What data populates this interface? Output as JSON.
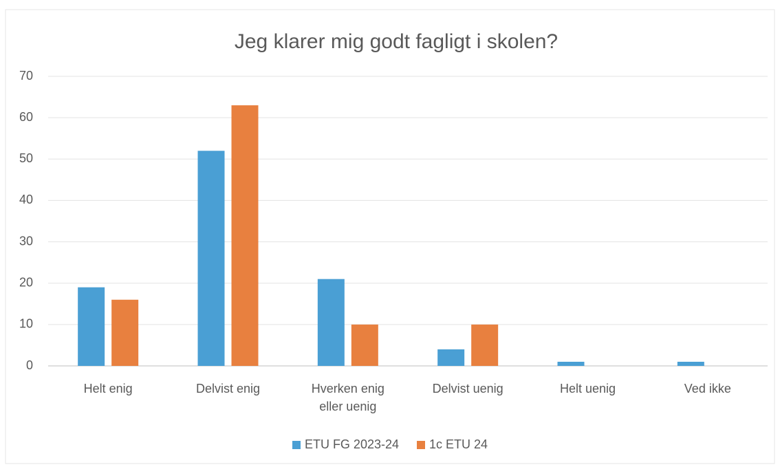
{
  "chart_data": {
    "type": "bar",
    "title": "Jeg klarer mig godt fagligt i skolen?",
    "categories": [
      "Helt enig",
      "Delvist enig",
      "Hverken enig eller uenig",
      "Delvist uenig",
      "Helt uenig",
      "Ved ikke"
    ],
    "series": [
      {
        "name": "ETU FG 2023-24",
        "color": "#4a9fd4",
        "values": [
          19,
          52,
          21,
          4,
          1,
          1
        ]
      },
      {
        "name": "1c ETU 24",
        "color": "#e8803f",
        "values": [
          16,
          63,
          10,
          10,
          0,
          0
        ]
      }
    ],
    "ylim": [
      0,
      70
    ],
    "yticks": [
      0,
      10,
      20,
      30,
      40,
      50,
      60,
      70
    ],
    "grid": true,
    "legend": "bottom"
  }
}
